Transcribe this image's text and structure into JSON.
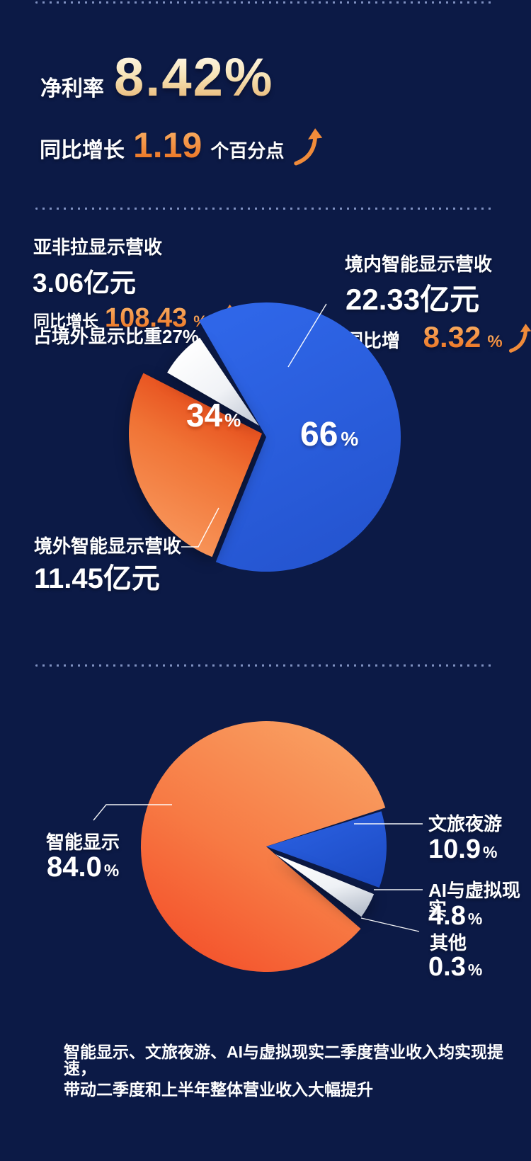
{
  "palette": {
    "background": "#0c1a46",
    "accent_orange": "#f08b3a",
    "accent_gold": "#eec183",
    "blue_slice": "#2d62e4",
    "orange_slice": "#f6864a",
    "divider_dot": "#93a5d6"
  },
  "net_margin": {
    "label": "净利率",
    "value": "8.42%",
    "yoy_prefix": "同比增长",
    "yoy_num": "1.19",
    "yoy_suffix": "个百分点"
  },
  "display_revenue": {
    "left": {
      "title": "亚非拉显示营收",
      "amount": "3.06亿元",
      "yoy_prefix": "同比增长",
      "yoy_num": "108.43",
      "yoy_sign": "%",
      "share_note": "占境外显示比重27%"
    },
    "right": {
      "title": "境内智能显示营收",
      "amount": "22.33亿元",
      "yoy_prefix": "同比增长",
      "yoy_num": "8.32",
      "yoy_sign": "%"
    },
    "overseas": {
      "title": "境外智能显示营收",
      "amount": "11.45亿元"
    }
  },
  "footnote": {
    "line1": "智能显示、文旅夜游、AI与虚拟现实二季度营业收入均实现提速，",
    "line2": "带动二季度和上半年整体营业收入大幅提升"
  },
  "chart_data": [
    {
      "type": "pie",
      "labels_on_chart": true,
      "legend_position": "none",
      "slices": [
        {
          "label": "境内智能显示营收",
          "pct": 66,
          "num": "66",
          "sign": "%",
          "color": "#2d62e4",
          "amount": "22.33亿元",
          "yoy": "8.32%"
        },
        {
          "label": "境外智能显示营收",
          "pct": 34,
          "num": "34",
          "sign": "%",
          "color": "#f6864a",
          "amount": "11.45亿元"
        },
        {
          "label": "亚非拉显示营收（占境外显示比重27%）",
          "pct_est": 9.2,
          "color": "#ffffff",
          "amount": "3.06亿元",
          "yoy": "108.43%"
        }
      ]
    },
    {
      "type": "pie",
      "labels_on_chart": false,
      "legend_position": "callouts",
      "slices": [
        {
          "label": "智能显示",
          "pct": 84.0,
          "num": "84.0",
          "sign": "%",
          "color": "#f6763f"
        },
        {
          "label": "文旅夜游",
          "pct": 10.9,
          "num": "10.9",
          "sign": "%",
          "color": "#2458d8"
        },
        {
          "label": "AI与虚拟现实",
          "pct": 4.8,
          "num": "4.8",
          "sign": "%",
          "color": "#ffffff"
        },
        {
          "label": "其他",
          "pct": 0.3,
          "num": "0.3",
          "sign": "%",
          "color": "#0c1a46"
        }
      ]
    }
  ]
}
